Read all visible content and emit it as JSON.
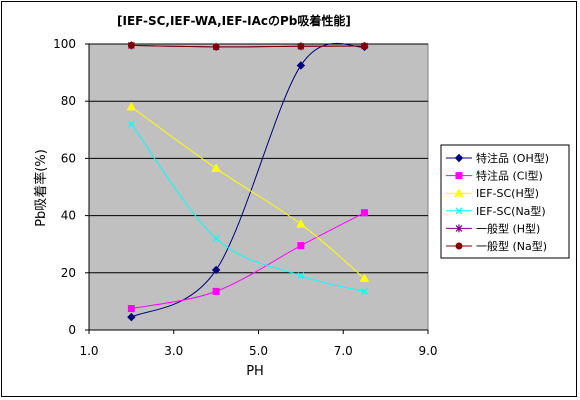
{
  "chart_data": {
    "type": "scatter",
    "title": "[IEF-SC,IEF-WA,IEF-IAcのPb吸着性能]",
    "xlabel": "PH",
    "ylabel": "Pb吸着率(%)",
    "xlim": [
      1.0,
      9.0
    ],
    "ylim": [
      0,
      100
    ],
    "x_ticks": [
      1.0,
      3.0,
      5.0,
      7.0,
      9.0
    ],
    "x_tick_labels": [
      "1.0",
      "3.0",
      "5.0",
      "7.0",
      "9.0"
    ],
    "y_ticks": [
      0,
      20,
      40,
      60,
      80,
      100
    ],
    "y_tick_labels": [
      "0",
      "20",
      "40",
      "60",
      "80",
      "100"
    ],
    "grid": "horizontal",
    "plot_background": "#c0c0c0",
    "legend_position": "right",
    "series": [
      {
        "name": "特注品 (OH型)",
        "color": "#000080",
        "marker": "diamond",
        "x": [
          2.0,
          4.0,
          6.0,
          7.5
        ],
        "y": [
          4.5,
          21,
          92.5,
          99
        ]
      },
      {
        "name": "特注品 (Cl型)",
        "color": "#ff00ff",
        "marker": "square",
        "x": [
          2.0,
          4.0,
          6.0,
          7.5
        ],
        "y": [
          7.5,
          13.5,
          29.5,
          41
        ]
      },
      {
        "name": "IEF-SC(H型)",
        "color": "#ffff00",
        "marker": "triangle",
        "x": [
          2.0,
          4.0,
          6.0,
          7.5
        ],
        "y": [
          78,
          56.5,
          37,
          18
        ]
      },
      {
        "name": "IEF-SC(Na型)",
        "color": "#00ffff",
        "marker": "x",
        "x": [
          2.0,
          4.0,
          6.0,
          7.5
        ],
        "y": [
          72,
          32,
          19,
          13.5
        ]
      },
      {
        "name": "一般型 (H型)",
        "color": "#800080",
        "marker": "star",
        "x": [
          2.0,
          4.0,
          6.0,
          7.5
        ],
        "y": [
          99.5,
          99,
          99.2,
          99.3
        ]
      },
      {
        "name": "一般型 (Na型)",
        "color": "#800000",
        "marker": "circle",
        "x": [
          2.0,
          4.0,
          6.0,
          7.5
        ],
        "y": [
          99.5,
          99,
          99.2,
          99.3
        ]
      }
    ]
  }
}
